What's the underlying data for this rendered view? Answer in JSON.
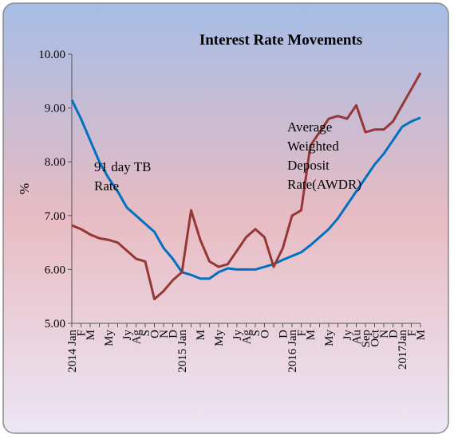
{
  "chart_data": {
    "type": "line",
    "title": "Interest Rate Movements",
    "y_label": "%",
    "categories": [
      "2014 Jan",
      "F",
      "M",
      null,
      "My",
      null,
      "Jy",
      "Ag",
      "S",
      "O",
      "N",
      "D",
      "2015 Jan",
      null,
      "M",
      null,
      "My",
      null,
      "Jy",
      "Ag",
      "S",
      "O",
      null,
      "D",
      "2016 Jan",
      "F",
      "M",
      null,
      "My",
      null,
      "Jy",
      "Au",
      "Sep",
      "Oct",
      "N",
      "D",
      "2017Jan",
      "F",
      "M"
    ],
    "series": [
      {
        "name": "91 day TB Rate",
        "color": "#0070c0",
        "values": [
          9.15,
          8.8,
          8.4,
          8.0,
          7.7,
          7.45,
          7.15,
          7.0,
          6.85,
          6.7,
          6.4,
          6.2,
          5.95,
          5.9,
          5.83,
          5.83,
          5.95,
          6.02,
          6.0,
          6.0,
          6.0,
          6.05,
          6.1,
          6.18,
          6.25,
          6.32,
          6.45,
          6.6,
          6.75,
          6.95,
          7.2,
          7.45,
          7.7,
          7.95,
          8.15,
          8.4,
          8.65,
          8.75,
          8.82
        ]
      },
      {
        "name": "AWDR",
        "color": "#953735",
        "values": [
          6.82,
          6.75,
          6.65,
          6.58,
          6.55,
          6.5,
          6.35,
          6.2,
          6.15,
          5.45,
          5.6,
          5.8,
          5.95,
          7.1,
          6.55,
          6.15,
          6.05,
          6.1,
          6.35,
          6.6,
          6.75,
          6.6,
          6.05,
          6.4,
          7.0,
          7.1,
          8.3,
          8.55,
          8.8,
          8.85,
          8.8,
          9.05,
          8.55,
          8.6,
          8.6,
          8.75,
          9.05,
          9.35,
          9.65
        ]
      }
    ],
    "annotations": [
      {
        "lines": [
          "91 day TB",
          "Rate"
        ]
      },
      {
        "lines": [
          "Average",
          "Weighted",
          "Deposit",
          "Rate(AWDR)"
        ]
      }
    ],
    "ylim": [
      5,
      10
    ],
    "yticks": [
      {
        "value": 5,
        "label": "5.00"
      },
      {
        "value": 6,
        "label": "6.00"
      },
      {
        "value": 7,
        "label": "7.00"
      },
      {
        "value": 8,
        "label": "8.00"
      },
      {
        "value": 9,
        "label": "9.00"
      },
      {
        "value": 10,
        "label": "10.00"
      }
    ]
  }
}
